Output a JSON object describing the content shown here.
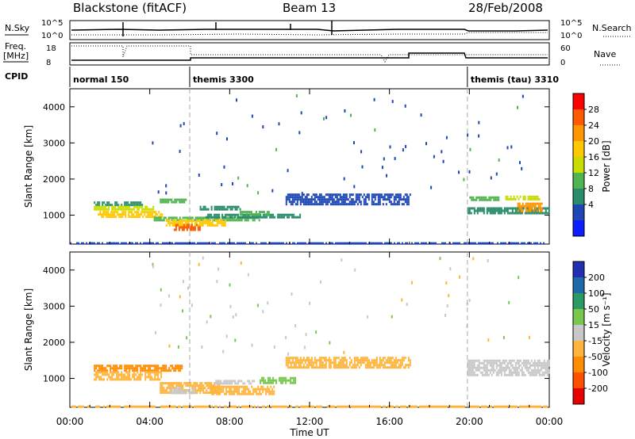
{
  "header": {
    "title": "Blackstone (fitACF)",
    "beam": "Beam 13",
    "date": "28/Feb/2008"
  },
  "labels": {
    "nsky": "N.Sky",
    "nsearch": "N.Search",
    "freq_line1": "Freq.",
    "freq_line2": "[MHz]",
    "nave": "Nave",
    "cpid": "CPID",
    "nsky_ticks": [
      "10^5",
      "10^0"
    ],
    "nsearch_ticks": [
      "10^5",
      "10^0"
    ],
    "freq_ticks": [
      "18",
      "8"
    ],
    "nave_ticks": [
      "60",
      "0"
    ]
  },
  "cpid_modes": [
    {
      "name": "normal 150",
      "start": 0,
      "end": 6
    },
    {
      "name": "themis 3300",
      "start": 6,
      "end": 19.9
    },
    {
      "name": "themis (tau) 3310",
      "start": 19.9,
      "end": 24
    }
  ],
  "power_colorbar": {
    "label": "Power [dB]",
    "ticks": [
      "28",
      "24",
      "20",
      "16",
      "12",
      "8",
      "4"
    ],
    "colors": [
      "#ff0000",
      "#ff5a00",
      "#ff9600",
      "#ffc800",
      "#c8dc00",
      "#50b450",
      "#2a8c6a",
      "#1e46b4",
      "#0a1eff"
    ]
  },
  "velocity_colorbar": {
    "label": "Velocity [m s⁻¹]",
    "ticks": [
      "200",
      "100",
      "50",
      "15",
      "-15",
      "-50",
      "-100",
      "-200"
    ],
    "colors": [
      "#2030b0",
      "#1e6aa8",
      "#2c9a64",
      "#78c850",
      "#c8c8c8",
      "#ffb43c",
      "#ff8c00",
      "#ff5000",
      "#e80000"
    ]
  },
  "chart_data": [
    {
      "type": "heatmap",
      "name": "power",
      "ylabel": "Slant Range [km]",
      "yticks": [
        "1000",
        "2000",
        "3000",
        "4000"
      ],
      "ylim": [
        200,
        4500
      ],
      "xlim": [
        0,
        24
      ],
      "regions": [
        {
          "x0": 1.2,
          "x1": 3.6,
          "y0": 1300,
          "y1": 1380,
          "level": 8
        },
        {
          "x0": 1.2,
          "x1": 4.2,
          "y0": 1140,
          "y1": 1260,
          "level": 16
        },
        {
          "x0": 1.4,
          "x1": 4.6,
          "y0": 980,
          "y1": 1120,
          "level": 20
        },
        {
          "x0": 4.5,
          "x1": 5.8,
          "y0": 1380,
          "y1": 1460,
          "level": 12
        },
        {
          "x0": 4.2,
          "x1": 9.5,
          "y0": 860,
          "y1": 960,
          "level": 12
        },
        {
          "x0": 4.8,
          "x1": 7.8,
          "y0": 720,
          "y1": 880,
          "level": 20
        },
        {
          "x0": 5.2,
          "x1": 6.6,
          "y0": 620,
          "y1": 760,
          "level": 28
        },
        {
          "x0": 6.8,
          "x1": 11.5,
          "y0": 950,
          "y1": 1040,
          "level": 8
        },
        {
          "x0": 8.5,
          "x1": 10.0,
          "y0": 1040,
          "y1": 1120,
          "level": 12
        },
        {
          "x0": 6.5,
          "x1": 8.5,
          "y0": 1180,
          "y1": 1260,
          "level": 8
        },
        {
          "x0": 10.8,
          "x1": 17.0,
          "y0": 1300,
          "y1": 1600,
          "level": 4
        },
        {
          "x0": 19.9,
          "x1": 24.0,
          "y0": 1080,
          "y1": 1220,
          "level": 8
        },
        {
          "x0": 20.0,
          "x1": 21.5,
          "y0": 1450,
          "y1": 1520,
          "level": 12
        },
        {
          "x0": 21.8,
          "x1": 23.5,
          "y0": 1420,
          "y1": 1540,
          "level": 16
        },
        {
          "x0": 22.4,
          "x1": 23.6,
          "y0": 1150,
          "y1": 1350,
          "level": 24
        },
        {
          "x0": 0.0,
          "x1": 24.0,
          "y0": 200,
          "y1": 250,
          "level": 4
        }
      ]
    },
    {
      "type": "heatmap",
      "name": "velocity",
      "ylabel": "Slant Range [km]",
      "xlabel": "Time UT",
      "yticks": [
        "1000",
        "2000",
        "3000",
        "4000"
      ],
      "xticks": [
        "00:00",
        "04:00",
        "08:00",
        "12:00",
        "16:00",
        "20:00",
        "00:00"
      ],
      "ylim": [
        200,
        4500
      ],
      "xlim": [
        0,
        24
      ],
      "regions": [
        {
          "x0": 1.2,
          "x1": 5.6,
          "y0": 1240,
          "y1": 1380,
          "velocity": -100
        },
        {
          "x0": 1.2,
          "x1": 4.6,
          "y0": 980,
          "y1": 1200,
          "velocity": -50
        },
        {
          "x0": 4.5,
          "x1": 7.5,
          "y0": 620,
          "y1": 900,
          "velocity": -50
        },
        {
          "x0": 5.0,
          "x1": 6.2,
          "y0": 620,
          "y1": 760,
          "velocity": -15
        },
        {
          "x0": 7.0,
          "x1": 10.2,
          "y0": 560,
          "y1": 800,
          "velocity": -50
        },
        {
          "x0": 7.2,
          "x1": 9.2,
          "y0": 880,
          "y1": 960,
          "velocity": -15
        },
        {
          "x0": 9.5,
          "x1": 11.3,
          "y0": 900,
          "y1": 1040,
          "velocity": 15
        },
        {
          "x0": 10.8,
          "x1": 17.0,
          "y0": 1300,
          "y1": 1600,
          "velocity": -50
        },
        {
          "x0": 19.9,
          "x1": 24.0,
          "y0": 1100,
          "y1": 1520,
          "velocity": 0
        },
        {
          "x0": 0.0,
          "x1": 24.0,
          "y0": 200,
          "y1": 250,
          "velocity": -50
        }
      ]
    }
  ]
}
